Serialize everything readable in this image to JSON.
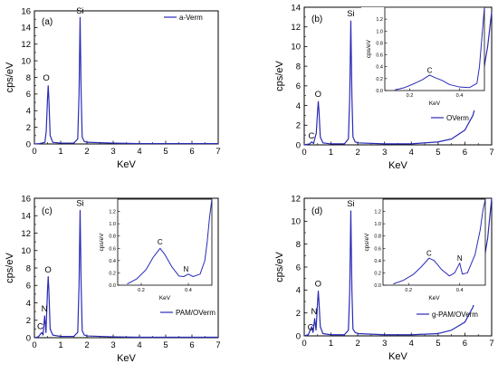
{
  "chart_data": [
    {
      "type": "line",
      "panel_label": "(a)",
      "xlabel": "KeV",
      "ylabel": "cps/eV",
      "xlim": [
        0,
        7
      ],
      "ylim": [
        0,
        16
      ],
      "x_ticks": [
        "0",
        "1",
        "2",
        "3",
        "4",
        "5",
        "6",
        "7"
      ],
      "y_ticks": [
        "0",
        "2",
        "4",
        "6",
        "8",
        "10",
        "12",
        "14",
        "16"
      ],
      "series": [
        {
          "name": "a-Verm",
          "color": "#2a2ab8",
          "x": [
            0,
            0.2,
            0.4,
            0.45,
            0.5,
            0.525,
            0.55,
            0.6,
            0.7,
            1.0,
            1.5,
            1.65,
            1.7,
            1.74,
            1.78,
            1.82,
            1.9,
            2.0,
            3.0,
            4.0,
            5.0,
            6.0,
            7.0
          ],
          "y": [
            0,
            0.05,
            0.2,
            1.5,
            5.5,
            7.0,
            5.5,
            1.0,
            0.2,
            0.1,
            0.1,
            0.6,
            6.0,
            15.2,
            6.0,
            0.8,
            0.3,
            0.2,
            0.1,
            0.05,
            0.05,
            0.05,
            0.05
          ]
        }
      ],
      "annotations": [
        {
          "text": "O",
          "x": 0.45,
          "y": 7.6
        },
        {
          "text": "Si",
          "x": 1.74,
          "y": 15.7
        }
      ]
    },
    {
      "type": "line",
      "panel_label": "(b)",
      "xlabel": "KeV",
      "ylabel": "cps/eV",
      "xlim": [
        0,
        7
      ],
      "ylim": [
        0,
        14
      ],
      "x_ticks": [
        "0",
        "1",
        "2",
        "3",
        "4",
        "5",
        "6",
        "7"
      ],
      "y_ticks": [
        "0",
        "2",
        "4",
        "6",
        "8",
        "10",
        "12",
        "14"
      ],
      "series": [
        {
          "name": "OVerm",
          "color": "#2a2ab8",
          "x": [
            0,
            0.2,
            0.28,
            0.35,
            0.45,
            0.5,
            0.525,
            0.55,
            0.6,
            0.7,
            1.0,
            1.5,
            1.65,
            1.7,
            1.74,
            1.78,
            1.82,
            1.9,
            2.0,
            3.0,
            4.0,
            5.0,
            5.5,
            6.0,
            6.3,
            6.6,
            6.85,
            7.0
          ],
          "y": [
            0,
            0.1,
            0.3,
            0.15,
            1.2,
            3.5,
            4.4,
            3.5,
            0.8,
            0.2,
            0.1,
            0.1,
            0.6,
            5.0,
            12.6,
            5.0,
            0.8,
            0.3,
            0.2,
            0.1,
            0.1,
            0.3,
            0.6,
            1.5,
            3.0,
            6.0,
            10.0,
            13.5
          ]
        }
      ],
      "annotations": [
        {
          "text": "O",
          "x": 0.52,
          "y": 4.9
        },
        {
          "text": "Si",
          "x": 1.74,
          "y": 13.1
        },
        {
          "text": "C",
          "x": 0.27,
          "y": 0.65
        }
      ],
      "inset": {
        "xlabel": "KeV",
        "ylabel": "cps/eV",
        "xlim": [
          0.1,
          0.5
        ],
        "ylim": [
          0,
          1.4
        ],
        "x_ticks": [
          "0.2",
          "0.4"
        ],
        "y_ticks": [
          "0.0",
          "0.2",
          "0.4",
          "0.6",
          "0.8",
          "1.0",
          "1.2"
        ],
        "x": [
          0.14,
          0.18,
          0.22,
          0.25,
          0.28,
          0.3,
          0.33,
          0.36,
          0.4,
          0.44,
          0.47,
          0.48,
          0.49,
          0.5
        ],
        "y": [
          0.01,
          0.05,
          0.12,
          0.18,
          0.26,
          0.22,
          0.17,
          0.1,
          0.06,
          0.05,
          0.12,
          0.4,
          0.9,
          1.4
        ],
        "annotations": [
          {
            "text": "C",
            "x": 0.28,
            "y": 0.3
          }
        ]
      }
    },
    {
      "type": "line",
      "panel_label": "(c)",
      "xlabel": "KeV",
      "ylabel": "cps/eV",
      "xlim": [
        0,
        7
      ],
      "ylim": [
        0,
        16
      ],
      "x_ticks": [
        "0",
        "1",
        "2",
        "3",
        "4",
        "5",
        "6",
        "7"
      ],
      "y_ticks": [
        "0",
        "2",
        "4",
        "6",
        "8",
        "10",
        "12",
        "14",
        "16"
      ],
      "series": [
        {
          "name": "PAM/OVerm",
          "color": "#2a2ab8",
          "x": [
            0,
            0.15,
            0.28,
            0.33,
            0.39,
            0.44,
            0.5,
            0.525,
            0.55,
            0.6,
            0.7,
            1.0,
            1.5,
            1.65,
            1.7,
            1.74,
            1.78,
            1.82,
            1.9,
            2.0,
            3.0,
            4.0,
            5.0,
            6.0,
            7.0
          ],
          "y": [
            0,
            0.1,
            0.6,
            0.3,
            2.5,
            0.6,
            5.5,
            7.0,
            5.5,
            1.0,
            0.3,
            0.15,
            0.15,
            0.6,
            6.0,
            14.6,
            6.0,
            0.8,
            0.3,
            0.2,
            0.1,
            0.05,
            0.05,
            0.05,
            0.05
          ]
        }
      ],
      "annotations": [
        {
          "text": "O",
          "x": 0.52,
          "y": 7.5
        },
        {
          "text": "Si",
          "x": 1.74,
          "y": 15.1
        },
        {
          "text": "N",
          "x": 0.38,
          "y": 3.0
        },
        {
          "text": "C",
          "x": 0.22,
          "y": 1.0
        }
      ],
      "inset": {
        "xlabel": "KeV",
        "ylabel": "cps/eV",
        "xlim": [
          0.1,
          0.5
        ],
        "ylim": [
          0,
          1.4
        ],
        "x_ticks": [
          "0.2",
          "0.4"
        ],
        "y_ticks": [
          "0.0",
          "0.2",
          "0.4",
          "0.6",
          "0.8",
          "1.0",
          "1.2"
        ],
        "x": [
          0.14,
          0.18,
          0.22,
          0.25,
          0.28,
          0.3,
          0.33,
          0.36,
          0.38,
          0.4,
          0.42,
          0.45,
          0.47,
          0.48,
          0.49,
          0.5
        ],
        "y": [
          0.02,
          0.1,
          0.25,
          0.45,
          0.6,
          0.5,
          0.3,
          0.15,
          0.14,
          0.18,
          0.14,
          0.18,
          0.4,
          0.7,
          1.1,
          1.4
        ],
        "annotations": [
          {
            "text": "C",
            "x": 0.28,
            "y": 0.66
          },
          {
            "text": "N",
            "x": 0.39,
            "y": 0.22
          }
        ]
      }
    },
    {
      "type": "line",
      "panel_label": "(d)",
      "xlabel": "KeV",
      "ylabel": "cps/eV",
      "xlim": [
        0,
        7
      ],
      "ylim": [
        0,
        12
      ],
      "x_ticks": [
        "0",
        "1",
        "2",
        "3",
        "4",
        "5",
        "6",
        "7"
      ],
      "y_ticks": [
        "0",
        "2",
        "4",
        "6",
        "8",
        "10",
        "12"
      ],
      "series": [
        {
          "name": "g-PAM/OVerm",
          "color": "#2a2ab8",
          "x": [
            0,
            0.15,
            0.28,
            0.33,
            0.39,
            0.44,
            0.5,
            0.525,
            0.55,
            0.6,
            0.7,
            1.0,
            1.5,
            1.65,
            1.7,
            1.74,
            1.78,
            1.82,
            1.9,
            2.0,
            3.0,
            4.0,
            5.0,
            5.5,
            6.0,
            6.3,
            6.6,
            6.85,
            7.0
          ],
          "y": [
            0,
            0.1,
            0.8,
            0.3,
            1.5,
            0.5,
            3.0,
            3.9,
            3.0,
            0.8,
            0.2,
            0.1,
            0.1,
            0.5,
            4.0,
            10.9,
            4.0,
            0.6,
            0.3,
            0.2,
            0.1,
            0.1,
            0.2,
            0.5,
            1.2,
            2.5,
            5.0,
            8.5,
            12.0
          ]
        }
      ],
      "annotations": [
        {
          "text": "O",
          "x": 0.52,
          "y": 4.3
        },
        {
          "text": "Si",
          "x": 1.74,
          "y": 11.3
        },
        {
          "text": "N",
          "x": 0.37,
          "y": 1.9
        },
        {
          "text": "C",
          "x": 0.24,
          "y": 0.5
        }
      ],
      "inset": {
        "xlabel": "KeV",
        "ylabel": "cps/eV",
        "xlim": [
          0.1,
          0.5
        ],
        "ylim": [
          0,
          1.4
        ],
        "x_ticks": [
          "0.2",
          "0.4"
        ],
        "y_ticks": [
          "0.0",
          "0.2",
          "0.4",
          "0.6",
          "0.8",
          "1.0",
          "1.2"
        ],
        "x": [
          0.14,
          0.18,
          0.22,
          0.25,
          0.28,
          0.3,
          0.33,
          0.36,
          0.38,
          0.4,
          0.41,
          0.43,
          0.46,
          0.48,
          0.49,
          0.5
        ],
        "y": [
          0.02,
          0.08,
          0.18,
          0.3,
          0.44,
          0.4,
          0.25,
          0.15,
          0.2,
          0.36,
          0.18,
          0.2,
          0.5,
          0.9,
          1.2,
          1.4
        ],
        "annotations": [
          {
            "text": "C",
            "x": 0.28,
            "y": 0.48
          },
          {
            "text": "N",
            "x": 0.4,
            "y": 0.4
          }
        ]
      }
    }
  ]
}
